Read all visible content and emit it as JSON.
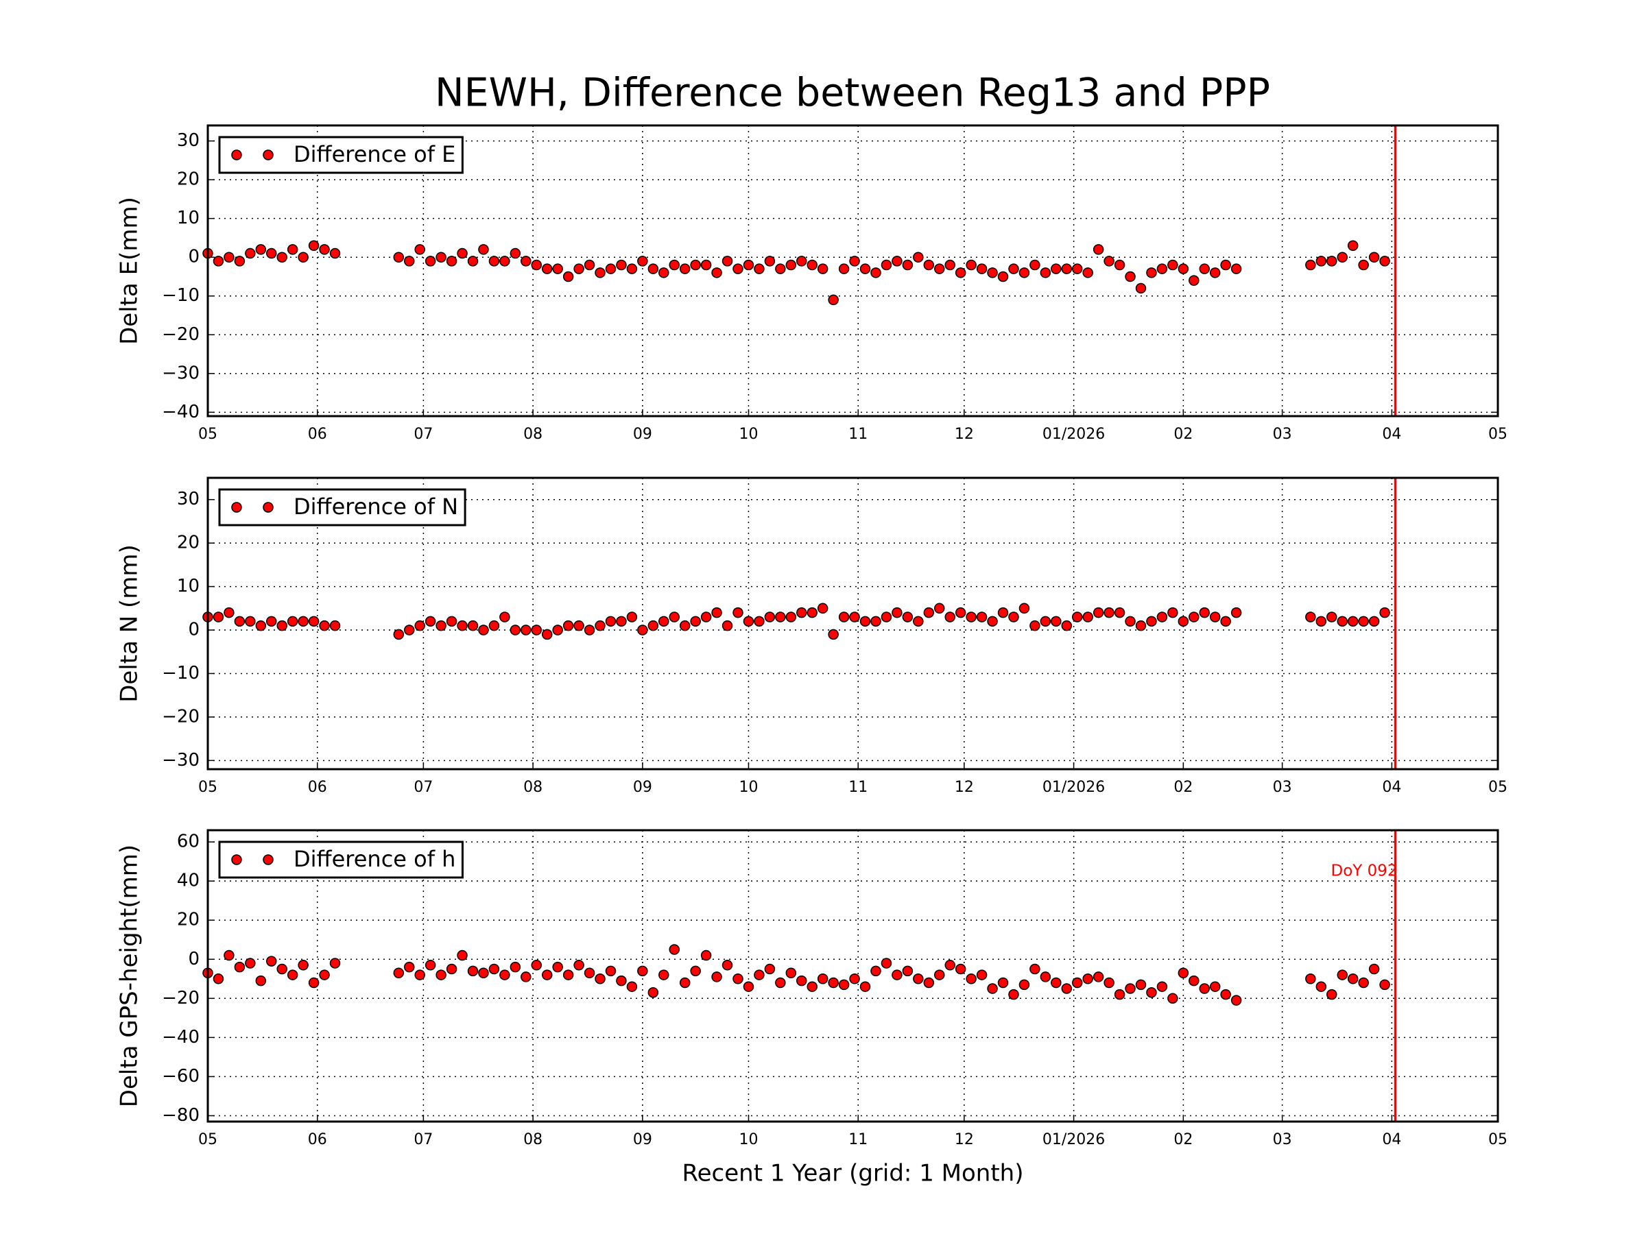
{
  "title": "NEWH, Difference between Reg13 and PPP",
  "chart_data": [
    {
      "type": "scatter",
      "ylabel": "Delta E(mm)",
      "grid": true,
      "legend": "upper left",
      "xlim": [
        0,
        365
      ],
      "xticks": [
        {
          "value": 0,
          "label": "05"
        },
        {
          "value": 31,
          "label": "06"
        },
        {
          "value": 61,
          "label": "07"
        },
        {
          "value": 92,
          "label": "08"
        },
        {
          "value": 123,
          "label": "09"
        },
        {
          "value": 153,
          "label": "10"
        },
        {
          "value": 184,
          "label": "11"
        },
        {
          "value": 214,
          "label": "12"
        },
        {
          "value": 245,
          "label": "01/2026"
        },
        {
          "value": 276,
          "label": "02"
        },
        {
          "value": 304,
          "label": "03"
        },
        {
          "value": 335,
          "label": "04"
        },
        {
          "value": 365,
          "label": "05"
        }
      ],
      "ylim": [
        -41,
        34
      ],
      "yticks": [
        {
          "value": -40,
          "label": "−40"
        },
        {
          "value": -30,
          "label": "−30"
        },
        {
          "value": -20,
          "label": "−20"
        },
        {
          "value": -10,
          "label": "−10"
        },
        0,
        10,
        20,
        30
      ],
      "vline": {
        "x": 336,
        "color": "#ff0000"
      },
      "x": [
        0,
        3,
        6,
        9,
        12,
        15,
        18,
        21,
        24,
        27,
        30,
        33,
        36,
        54,
        57,
        60,
        63,
        66,
        69,
        72,
        75,
        78,
        81,
        84,
        87,
        90,
        93,
        96,
        99,
        102,
        105,
        108,
        111,
        114,
        117,
        120,
        123,
        126,
        129,
        132,
        135,
        138,
        141,
        144,
        147,
        150,
        153,
        156,
        159,
        162,
        165,
        168,
        171,
        174,
        177,
        180,
        183,
        186,
        189,
        192,
        195,
        198,
        201,
        204,
        207,
        210,
        213,
        216,
        219,
        222,
        225,
        228,
        231,
        234,
        237,
        240,
        243,
        246,
        249,
        252,
        255,
        258,
        261,
        264,
        267,
        270,
        273,
        276,
        279,
        282,
        285,
        288,
        291,
        312,
        315,
        318,
        321,
        324,
        327,
        330,
        333
      ],
      "series": [
        {
          "name": "Difference of E",
          "color": "#ff0000",
          "values": [
            1,
            -1,
            0,
            -1,
            1,
            2,
            1,
            0,
            2,
            0,
            3,
            2,
            1,
            0,
            -1,
            2,
            -1,
            0,
            -1,
            1,
            -1,
            2,
            -1,
            -1,
            1,
            -1,
            -2,
            -3,
            -3,
            -5,
            -3,
            -2,
            -4,
            -3,
            -2,
            -3,
            -1,
            -3,
            -4,
            -2,
            -3,
            -2,
            -2,
            -4,
            -1,
            -3,
            -2,
            -3,
            -1,
            -3,
            -2,
            -1,
            -2,
            -3,
            -11,
            -3,
            -1,
            -3,
            -4,
            -2,
            -1,
            -2,
            0,
            -2,
            -3,
            -2,
            -4,
            -2,
            -3,
            -4,
            -5,
            -3,
            -4,
            -2,
            -4,
            -3,
            -3,
            -3,
            -4,
            2,
            -1,
            -2,
            -5,
            -8,
            -4,
            -3,
            -2,
            -3,
            -6,
            -3,
            -4,
            -2,
            -3,
            -2,
            -1,
            -1,
            0,
            3,
            -2,
            0,
            -1
          ]
        }
      ]
    },
    {
      "type": "scatter",
      "ylabel": "Delta N (mm)",
      "grid": true,
      "legend": "upper left",
      "xlim": [
        0,
        365
      ],
      "xticks": [
        {
          "value": 0,
          "label": "05"
        },
        {
          "value": 31,
          "label": "06"
        },
        {
          "value": 61,
          "label": "07"
        },
        {
          "value": 92,
          "label": "08"
        },
        {
          "value": 123,
          "label": "09"
        },
        {
          "value": 153,
          "label": "10"
        },
        {
          "value": 184,
          "label": "11"
        },
        {
          "value": 214,
          "label": "12"
        },
        {
          "value": 245,
          "label": "01/2026"
        },
        {
          "value": 276,
          "label": "02"
        },
        {
          "value": 304,
          "label": "03"
        },
        {
          "value": 335,
          "label": "04"
        },
        {
          "value": 365,
          "label": "05"
        }
      ],
      "ylim": [
        -32,
        35
      ],
      "yticks": [
        {
          "value": -30,
          "label": "−30"
        },
        {
          "value": -20,
          "label": "−20"
        },
        {
          "value": -10,
          "label": "−10"
        },
        0,
        10,
        20,
        30
      ],
      "vline": {
        "x": 336,
        "color": "#ff0000"
      },
      "x": [
        0,
        3,
        6,
        9,
        12,
        15,
        18,
        21,
        24,
        27,
        30,
        33,
        36,
        54,
        57,
        60,
        63,
        66,
        69,
        72,
        75,
        78,
        81,
        84,
        87,
        90,
        93,
        96,
        99,
        102,
        105,
        108,
        111,
        114,
        117,
        120,
        123,
        126,
        129,
        132,
        135,
        138,
        141,
        144,
        147,
        150,
        153,
        156,
        159,
        162,
        165,
        168,
        171,
        174,
        177,
        180,
        183,
        186,
        189,
        192,
        195,
        198,
        201,
        204,
        207,
        210,
        213,
        216,
        219,
        222,
        225,
        228,
        231,
        234,
        237,
        240,
        243,
        246,
        249,
        252,
        255,
        258,
        261,
        264,
        267,
        270,
        273,
        276,
        279,
        282,
        285,
        288,
        291,
        312,
        315,
        318,
        321,
        324,
        327,
        330,
        333
      ],
      "series": [
        {
          "name": "Difference of N",
          "color": "#ff0000",
          "values": [
            3,
            3,
            4,
            2,
            2,
            1,
            2,
            1,
            2,
            2,
            2,
            1,
            1,
            -1,
            0,
            1,
            2,
            1,
            2,
            1,
            1,
            0,
            1,
            3,
            0,
            0,
            0,
            -1,
            0,
            1,
            1,
            0,
            1,
            2,
            2,
            3,
            0,
            1,
            2,
            3,
            1,
            2,
            3,
            4,
            1,
            4,
            2,
            2,
            3,
            3,
            3,
            4,
            4,
            5,
            -1,
            3,
            3,
            2,
            2,
            3,
            4,
            3,
            2,
            4,
            5,
            3,
            4,
            3,
            3,
            2,
            4,
            3,
            5,
            1,
            2,
            2,
            1,
            3,
            3,
            4,
            4,
            4,
            2,
            1,
            2,
            3,
            4,
            2,
            3,
            4,
            3,
            2,
            4,
            3,
            2,
            3,
            2,
            2,
            2,
            2,
            4
          ]
        }
      ]
    },
    {
      "type": "scatter",
      "ylabel": "Delta GPS-height(mm)",
      "xlabel": "Recent 1 Year (grid: 1 Month)",
      "grid": true,
      "legend": "upper left",
      "xlim": [
        0,
        365
      ],
      "xticks": [
        {
          "value": 0,
          "label": "05"
        },
        {
          "value": 31,
          "label": "06"
        },
        {
          "value": 61,
          "label": "07"
        },
        {
          "value": 92,
          "label": "08"
        },
        {
          "value": 123,
          "label": "09"
        },
        {
          "value": 153,
          "label": "10"
        },
        {
          "value": 184,
          "label": "11"
        },
        {
          "value": 214,
          "label": "12"
        },
        {
          "value": 245,
          "label": "01/2026"
        },
        {
          "value": 276,
          "label": "02"
        },
        {
          "value": 304,
          "label": "03"
        },
        {
          "value": 335,
          "label": "04"
        },
        {
          "value": 365,
          "label": "05"
        }
      ],
      "ylim": [
        -83,
        66
      ],
      "yticks": [
        {
          "value": -80,
          "label": "−80"
        },
        {
          "value": -60,
          "label": "−60"
        },
        {
          "value": -40,
          "label": "−40"
        },
        {
          "value": -20,
          "label": "−20"
        },
        0,
        20,
        40,
        60
      ],
      "vline": {
        "x": 336,
        "color": "#ff0000"
      },
      "annotation": "DoY 092",
      "x": [
        0,
        3,
        6,
        9,
        12,
        15,
        18,
        21,
        24,
        27,
        30,
        33,
        36,
        54,
        57,
        60,
        63,
        66,
        69,
        72,
        75,
        78,
        81,
        84,
        87,
        90,
        93,
        96,
        99,
        102,
        105,
        108,
        111,
        114,
        117,
        120,
        123,
        126,
        129,
        132,
        135,
        138,
        141,
        144,
        147,
        150,
        153,
        156,
        159,
        162,
        165,
        168,
        171,
        174,
        177,
        180,
        183,
        186,
        189,
        192,
        195,
        198,
        201,
        204,
        207,
        210,
        213,
        216,
        219,
        222,
        225,
        228,
        231,
        234,
        237,
        240,
        243,
        246,
        249,
        252,
        255,
        258,
        261,
        264,
        267,
        270,
        273,
        276,
        279,
        282,
        285,
        288,
        291,
        312,
        315,
        318,
        321,
        324,
        327,
        330,
        333
      ],
      "series": [
        {
          "name": "Difference of h",
          "color": "#ff0000",
          "values": [
            -7,
            -10,
            2,
            -4,
            -2,
            -11,
            -1,
            -5,
            -8,
            -3,
            -12,
            -8,
            -2,
            -7,
            -4,
            -8,
            -3,
            -8,
            -5,
            2,
            -6,
            -7,
            -5,
            -8,
            -4,
            -9,
            -3,
            -8,
            -4,
            -8,
            -3,
            -7,
            -10,
            -6,
            -11,
            -14,
            -6,
            -17,
            -8,
            5,
            -12,
            -6,
            2,
            -9,
            -3,
            -10,
            -14,
            -8,
            -5,
            -12,
            -7,
            -11,
            -14,
            -10,
            -12,
            -13,
            -10,
            -14,
            -6,
            -2,
            -8,
            -6,
            -10,
            -12,
            -8,
            -3,
            -5,
            -10,
            -8,
            -15,
            -12,
            -18,
            -13,
            -5,
            -9,
            -12,
            -15,
            -12,
            -10,
            -9,
            -12,
            -18,
            -15,
            -13,
            -17,
            -14,
            -20,
            -7,
            -11,
            -15,
            -14,
            -18,
            -21,
            -10,
            -14,
            -18,
            -8,
            -10,
            -12,
            -5,
            -13
          ]
        }
      ]
    }
  ]
}
